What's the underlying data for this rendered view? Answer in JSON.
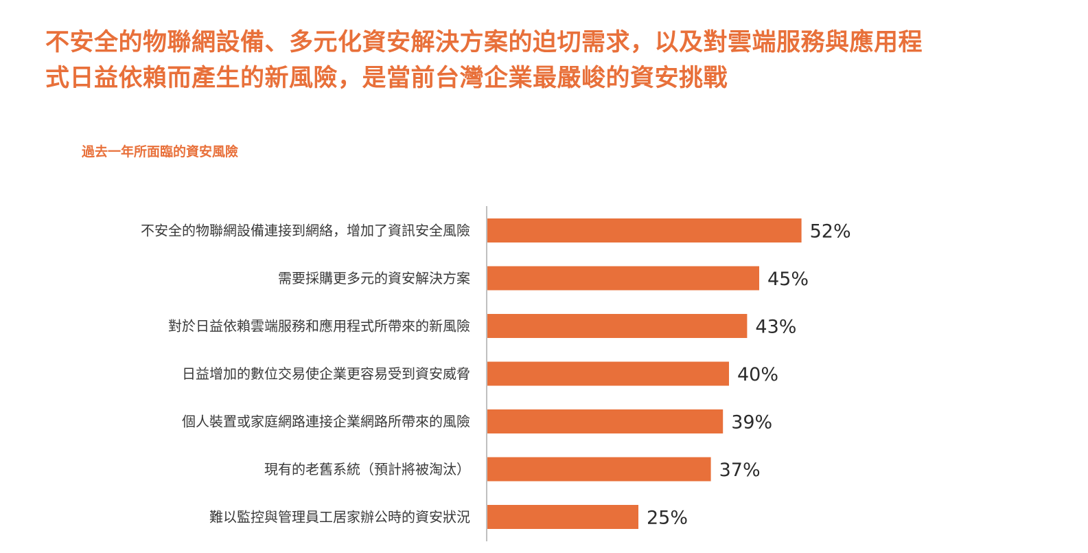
{
  "headline": {
    "line1": "不安全的物聯網設備、多元化資安解決方案的迫切需求，以及對雲端服務與應用程",
    "line2": "式日益依賴而產生的新風險，是當前台灣企業最嚴峻的資安挑戰"
  },
  "colors": {
    "accent": "#e8703a",
    "bar": "#e8703a",
    "axis": "#bfbfbf"
  },
  "chart_data": {
    "type": "bar",
    "orientation": "horizontal",
    "title": "過去一年所面臨的資安風險",
    "categories": [
      "不安全的物聯網設備連接到網絡，增加了資訊安全風險",
      "需要採購更多元的資安解決方案",
      "對於日益依賴雲端服務和應用程式所帶來的新風險",
      "日益增加的數位交易使企業更容易受到資安威脅",
      "個人裝置或家庭網路連接企業網路所帶來的風險",
      "現有的老舊系統（預計將被淘汰）",
      "難以監控與管理員工居家辦公時的資安狀況"
    ],
    "values": [
      52,
      45,
      43,
      40,
      39,
      37,
      25
    ],
    "value_labels": [
      "52%",
      "45%",
      "43%",
      "40%",
      "39%",
      "37%",
      "25%"
    ],
    "unit": "%",
    "xlim": [
      0,
      100
    ],
    "grid": false,
    "legend": "none"
  }
}
